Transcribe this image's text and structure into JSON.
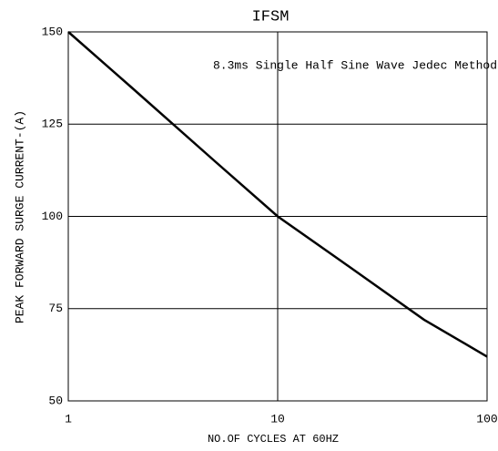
{
  "chart_data": {
    "type": "line",
    "title": "IFSM",
    "annotation": "8.3ms Single Half Sine Wave Jedec Method",
    "y_label": "PEAK FORWARD SURGE CURRENT-(A)",
    "x_label": "NO.OF CYCLES AT 60HZ",
    "x": [
      1,
      2,
      5,
      10,
      20,
      50,
      100
    ],
    "series": [
      {
        "name": "IFSM",
        "color": "#000000",
        "values": [
          150,
          135,
          115,
          100,
          88,
          72,
          62
        ]
      }
    ],
    "xlim": [
      1,
      100
    ],
    "xticks": [
      1,
      10,
      100
    ],
    "xlog": true,
    "ylim": [
      50,
      150
    ],
    "yticks": [
      50,
      75,
      100,
      125,
      150
    ],
    "grid": true
  }
}
